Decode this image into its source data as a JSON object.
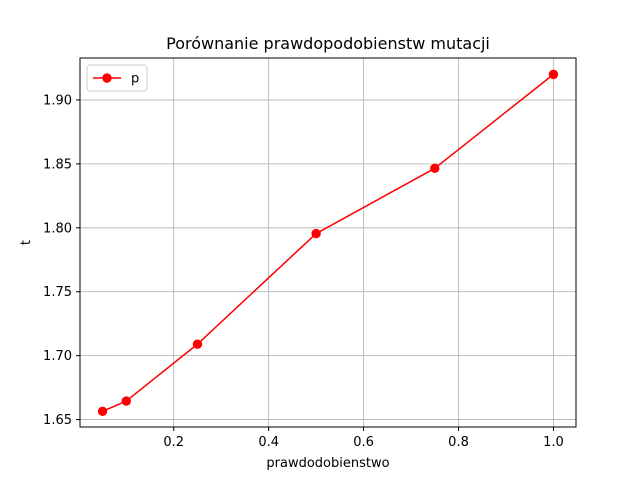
{
  "chart_data": {
    "type": "line",
    "title": "Porównanie prawdopodobienstw mutacji",
    "xlabel": "prawdodobienstwo",
    "ylabel": "t",
    "xlim": [
      0.0025,
      1.0475
    ],
    "ylim": [
      1.6442,
      1.9328
    ],
    "xticks": [
      0.2,
      0.4,
      0.6,
      0.8,
      1.0
    ],
    "xtick_labels": [
      "0.2",
      "0.4",
      "0.6",
      "0.8",
      "1.0"
    ],
    "yticks": [
      1.65,
      1.7,
      1.75,
      1.8,
      1.85,
      1.9
    ],
    "ytick_labels": [
      "1.65",
      "1.70",
      "1.75",
      "1.80",
      "1.85",
      "1.90"
    ],
    "grid": true,
    "legend_position": "top-left",
    "series": [
      {
        "name": "p",
        "color": "#ff0000",
        "marker": "circle",
        "x": [
          0.05,
          0.1,
          0.25,
          0.5,
          0.75,
          1.0
        ],
        "y": [
          1.6565,
          1.6645,
          1.709,
          1.7955,
          1.8465,
          1.92
        ]
      }
    ]
  }
}
